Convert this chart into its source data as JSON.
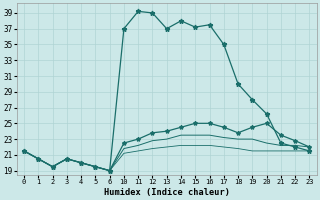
{
  "xlabel": "Humidex (Indice chaleur)",
  "bg_color": "#cce8e8",
  "line_color": "#1a6e6a",
  "grid_color": "#b0d4d4",
  "ylim": [
    18.5,
    40.2
  ],
  "yticks": [
    19,
    21,
    23,
    25,
    27,
    29,
    31,
    33,
    35,
    37,
    39
  ],
  "xlabels": [
    "0",
    "1",
    "2",
    "3",
    "4",
    "5",
    "6",
    "10",
    "11",
    "12",
    "13",
    "14",
    "15",
    "16",
    "17",
    "18",
    "19",
    "20",
    "21",
    "22",
    "23"
  ],
  "line1_y": [
    21.5,
    20.5,
    19.5,
    20.5,
    20.0,
    19.5,
    19.0,
    37.0,
    39.2,
    39.0,
    37.0,
    38.0,
    37.2,
    37.5,
    35.0,
    30.0,
    28.0,
    26.2,
    22.5,
    22.0,
    21.5
  ],
  "line2_y": [
    21.5,
    20.5,
    19.5,
    20.5,
    20.0,
    19.5,
    19.0,
    22.5,
    23.0,
    23.8,
    24.0,
    24.5,
    25.0,
    25.0,
    24.5,
    23.8,
    24.5,
    25.0,
    23.5,
    22.8,
    22.0
  ],
  "line3_y": [
    21.5,
    20.5,
    19.5,
    20.5,
    20.0,
    19.5,
    19.0,
    21.8,
    22.2,
    22.8,
    23.0,
    23.5,
    23.5,
    23.5,
    23.2,
    23.0,
    23.0,
    22.5,
    22.2,
    22.2,
    22.0
  ],
  "line4_y": [
    21.5,
    20.5,
    19.5,
    20.5,
    20.0,
    19.5,
    19.0,
    21.2,
    21.5,
    21.8,
    22.0,
    22.2,
    22.2,
    22.2,
    22.0,
    21.8,
    21.5,
    21.5,
    21.5,
    21.5,
    21.5
  ],
  "marker1_idx": [
    0,
    1,
    2,
    3,
    4,
    5,
    6,
    7,
    8,
    9,
    10,
    11,
    12,
    13,
    14,
    15,
    16,
    17,
    18,
    19,
    20
  ],
  "marker2_idx": [
    0,
    1,
    2,
    3,
    4,
    5,
    6,
    7,
    8,
    9,
    10,
    11,
    12,
    13,
    14,
    15,
    16,
    17,
    18,
    19,
    20
  ]
}
